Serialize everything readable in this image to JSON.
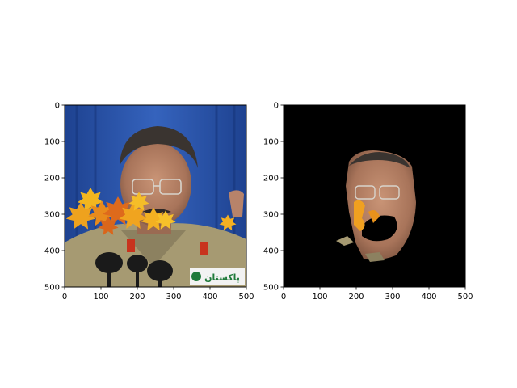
{
  "colors": {
    "figure_background": "#ffffff",
    "axes_frame": "#000000",
    "stage_curtain": "#2a52a8",
    "masked_background": "#000000",
    "leaf_orange": "#f0a020"
  },
  "chart_data": [
    {
      "type": "image",
      "content": "photograph-with-leaf-overlay",
      "title": "",
      "xlabel": "",
      "ylabel": "",
      "xlim": [
        0,
        500
      ],
      "ylim": [
        500,
        0
      ],
      "xticks": [
        "0",
        "100",
        "200",
        "300",
        "400",
        "500"
      ],
      "yticks": [
        "0",
        "100",
        "200",
        "300",
        "400",
        "500"
      ],
      "grid": false,
      "image_text": "پاکستان"
    },
    {
      "type": "image",
      "content": "segmented-face-mask",
      "title": "",
      "xlabel": "",
      "ylabel": "",
      "xlim": [
        0,
        500
      ],
      "ylim": [
        500,
        0
      ],
      "xticks": [
        "0",
        "100",
        "200",
        "300",
        "400",
        "500"
      ],
      "yticks": [
        "0",
        "100",
        "200",
        "300",
        "400",
        "500"
      ],
      "grid": false
    }
  ]
}
